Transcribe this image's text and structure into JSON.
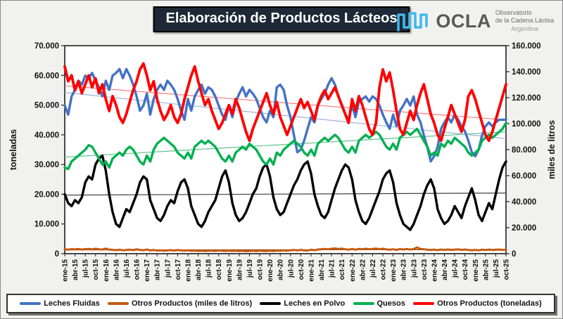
{
  "header": {
    "title": "Elaboración de Productos Lácteos",
    "logo": {
      "icon": "ocla-wave-icon",
      "name": "OCLA",
      "sub_line1": "Observatorio",
      "sub_line2": "de la Cadena Láctea",
      "sub_line3": "Argentina",
      "wave_color": "#41b8e8",
      "text_color": "#595959"
    }
  },
  "chart_data": {
    "type": "line",
    "title": "Elaboración de Productos Lácteos",
    "x_unit": "month",
    "x_range": [
      "ene-15",
      "oct-25"
    ],
    "n_points": 130,
    "grid": false,
    "legend_position": "bottom",
    "unit_scale": 1000,
    "left_axis": {
      "label": "toneladas",
      "min": 0,
      "max": 70000,
      "tick_labels": [
        "70.000",
        "60.000",
        "50.000",
        "40.000",
        "30.000",
        "20.000",
        "10.000",
        "0"
      ]
    },
    "right_axis": {
      "label": "miles de litros",
      "min": 0,
      "max": 160000,
      "tick_labels": [
        "160.000",
        "140.000",
        "120.000",
        "100.000",
        "80.000",
        "60.000",
        "40.000",
        "20.000",
        "0"
      ]
    },
    "x_tick_labels": [
      "ene-15",
      "abr-15",
      "jul-15",
      "oct-15",
      "ene-16",
      "abr-16",
      "jul-16",
      "oct-16",
      "ene-17",
      "abr-17",
      "jul-17",
      "oct-17",
      "ene-18",
      "abr-18",
      "jul-18",
      "oct-18",
      "ene-19",
      "abr-19",
      "jul-19",
      "oct-19",
      "ene-20",
      "abr-20",
      "jul-20",
      "oct-20",
      "ene-21",
      "abr-21",
      "jul-21",
      "oct-21",
      "ene-22",
      "abr-22",
      "jul-22",
      "oct-22",
      "ene-23",
      "abr-23",
      "jul-23",
      "oct-23",
      "ene-24",
      "abr-24",
      "jul-24",
      "oct-24",
      "ene-25",
      "abr-25",
      "jul-25",
      "oct-25"
    ],
    "series": [
      {
        "name": "Leches Fluidas",
        "axis": "right",
        "color": "#4472C4",
        "width": 3.4,
        "trend": [
          124,
          88.5
        ],
        "trend_color": "#9DB4D8",
        "values": [
          114,
          107,
          121,
          126,
          133,
          130,
          137,
          135,
          139,
          133,
          128,
          121,
          133,
          126,
          137,
          139,
          142,
          135,
          142,
          137,
          130,
          121,
          110,
          114,
          123,
          107,
          119,
          126,
          130,
          126,
          133,
          130,
          126,
          119,
          110,
          103,
          119,
          110,
          121,
          126,
          130,
          123,
          128,
          126,
          121,
          114,
          107,
          103,
          114,
          105,
          117,
          123,
          128,
          121,
          126,
          123,
          119,
          112,
          105,
          101,
          110,
          105,
          128,
          130,
          126,
          114,
          105,
          91,
          78,
          80,
          87,
          96,
          105,
          101,
          114,
          119,
          123,
          130,
          135,
          130,
          121,
          114,
          107,
          103,
          114,
          105,
          117,
          119,
          121,
          117,
          121,
          119,
          114,
          107,
          101,
          96,
          107,
          98,
          110,
          114,
          119,
          114,
          121,
          107,
          101,
          91,
          82,
          71,
          75,
          82,
          96,
          101,
          105,
          101,
          107,
          103,
          98,
          94,
          87,
          78,
          75,
          80,
          91,
          98,
          101,
          98,
          101,
          103,
          103,
          103
        ]
      },
      {
        "name": "Otros Productos (miles de litros)",
        "axis": "right",
        "color": "#C55A11",
        "width": 3,
        "trend": [
          2.9,
          3.05
        ],
        "trend_color": "#7B3F00",
        "values": [
          3.4,
          3.1,
          3.5,
          3.3,
          3.6,
          3.2,
          3.5,
          3.7,
          3.3,
          3.8,
          3.4,
          3.2,
          3.9,
          3.1,
          2.9,
          2.7,
          3.0,
          2.6,
          2.8,
          3.1,
          2.7,
          3.3,
          2.9,
          2.6,
          3.2,
          2.5,
          2.8,
          2.4,
          2.6,
          2.3,
          2.5,
          2.7,
          2.4,
          2.8,
          2.5,
          2.3,
          2.6,
          2.2,
          2.4,
          2.1,
          2.3,
          2.0,
          2.2,
          2.4,
          2.1,
          2.5,
          2.2,
          2.1,
          2.4,
          2.1,
          2.3,
          2.0,
          2.2,
          1.9,
          2.1,
          2.3,
          2.0,
          2.4,
          2.1,
          2.0,
          2.3,
          2.0,
          2.4,
          2.2,
          2.5,
          2.3,
          2.6,
          2.8,
          2.5,
          2.9,
          2.6,
          2.4,
          3.0,
          2.6,
          3.2,
          3.4,
          3.7,
          3.4,
          3.8,
          4.0,
          3.6,
          3.9,
          3.4,
          3.1,
          3.6,
          3.1,
          3.7,
          3.4,
          3.8,
          3.4,
          3.7,
          3.9,
          3.5,
          3.8,
          3.3,
          3.0,
          3.4,
          2.9,
          3.5,
          3.2,
          3.6,
          3.2,
          3.5,
          4.8,
          3.7,
          3.4,
          3.0,
          2.8,
          3.1,
          2.7,
          3.2,
          2.9,
          3.2,
          2.9,
          3.1,
          3.3,
          2.9,
          3.2,
          2.8,
          2.6,
          2.9,
          2.6,
          3.0,
          2.8,
          3.1,
          2.8,
          3.0,
          3.2,
          2.9,
          3.1
        ]
      },
      {
        "name": "Leches en Polvo",
        "axis": "left",
        "color": "#000000",
        "width": 3.4,
        "trend": [
          19.7,
          20.4
        ],
        "trend_color": "#404040",
        "values": [
          20,
          17,
          16,
          18,
          17,
          19,
          24,
          26,
          25,
          30,
          32,
          33,
          28,
          20,
          14,
          10,
          9,
          12,
          15,
          14,
          17,
          20,
          24,
          26,
          25,
          18,
          15,
          12,
          11,
          13,
          16,
          18,
          17,
          21,
          24,
          25,
          22,
          16,
          13,
          10,
          9,
          11,
          14,
          16,
          18,
          22,
          26,
          28,
          24,
          17,
          13,
          11,
          12,
          14,
          17,
          20,
          22,
          26,
          29,
          30,
          26,
          19,
          15,
          13,
          14,
          17,
          20,
          23,
          25,
          28,
          30,
          31,
          27,
          20,
          16,
          13,
          12,
          14,
          18,
          22,
          25,
          28,
          30,
          29,
          25,
          18,
          14,
          11,
          10,
          12,
          15,
          18,
          21,
          25,
          27,
          28,
          24,
          17,
          13,
          10,
          9,
          8,
          10,
          13,
          16,
          20,
          23,
          25,
          22,
          15,
          12,
          10,
          11,
          13,
          16,
          14,
          12,
          16,
          19,
          22,
          18,
          13,
          11,
          14,
          17,
          15,
          20,
          25,
          29,
          31
        ]
      },
      {
        "name": "Quesos",
        "axis": "left",
        "color": "#00B050",
        "width": 3.4,
        "trend": [
          32.5,
          41
        ],
        "trend_color": "#5DC389",
        "values": [
          29,
          28.5,
          31,
          32,
          33,
          34,
          35,
          36.5,
          36,
          34,
          32,
          30,
          31,
          29,
          32,
          33,
          34,
          33,
          35,
          36,
          35,
          33,
          31,
          30,
          33,
          31,
          35,
          37,
          38,
          39,
          38,
          37,
          36,
          34,
          33,
          32,
          34,
          32,
          36,
          37,
          38,
          37,
          38,
          37,
          36,
          34,
          32,
          31,
          33,
          31,
          34,
          35,
          36,
          35,
          37,
          36,
          35,
          33,
          31,
          30,
          32,
          30,
          34,
          33,
          35,
          36,
          37,
          38,
          37,
          36,
          34,
          33,
          35,
          33,
          37,
          38,
          39,
          38,
          39,
          40,
          39,
          37,
          35,
          34,
          36,
          34,
          38,
          39,
          40,
          39,
          40,
          41,
          40,
          38,
          36,
          35,
          37,
          35,
          39,
          40,
          41,
          40,
          41,
          42,
          40,
          38,
          36,
          33,
          34,
          33,
          37,
          36,
          38,
          37,
          39,
          38,
          37,
          36,
          34,
          33,
          34,
          35,
          38,
          39,
          40,
          39,
          40,
          41,
          42,
          44
        ]
      },
      {
        "name": "Otros Productos (toneladas)",
        "axis": "left",
        "color": "#FF0000",
        "width": 3.8,
        "trend": [
          56.5,
          45
        ],
        "trend_color": "#F47C7C",
        "values": [
          63,
          58,
          60,
          55,
          58,
          54,
          57,
          60,
          56,
          59,
          54,
          57,
          52,
          48,
          53,
          50,
          46,
          44,
          47,
          51,
          55,
          58,
          62,
          64,
          60,
          55,
          58,
          52,
          48,
          45,
          47,
          50,
          46,
          44,
          47,
          52,
          56,
          60,
          63,
          58,
          54,
          50,
          52,
          48,
          45,
          42,
          44,
          47,
          50,
          47,
          52,
          49,
          45,
          41,
          38,
          42,
          45,
          48,
          51,
          54,
          50,
          47,
          51,
          46,
          43,
          40,
          43,
          46,
          49,
          52,
          49,
          51,
          48,
          45,
          50,
          53,
          55,
          52,
          54,
          56,
          53,
          50,
          47,
          44,
          52,
          48,
          53,
          50,
          46,
          42,
          40,
          44,
          56,
          62,
          58,
          61,
          55,
          48,
          42,
          40,
          44,
          48,
          45,
          50,
          54,
          57,
          52,
          47,
          44,
          40,
          38,
          42,
          46,
          50,
          47,
          44,
          41,
          45,
          53,
          55,
          52,
          48,
          44,
          40,
          38,
          41,
          45,
          49,
          53,
          57
        ]
      }
    ]
  }
}
